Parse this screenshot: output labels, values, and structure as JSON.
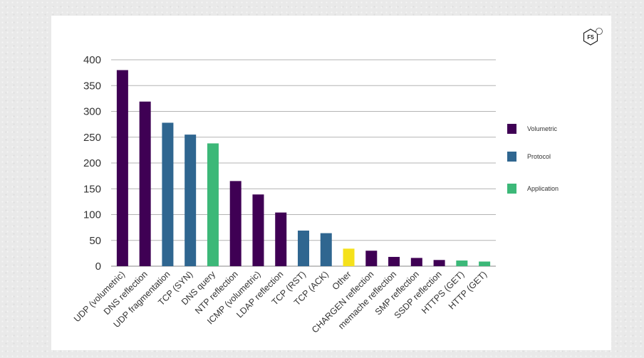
{
  "logo": {
    "text": "F5"
  },
  "chart_data": {
    "type": "bar",
    "title": "",
    "xlabel": "",
    "ylabel": "",
    "ylim": [
      0,
      400
    ],
    "yticks": [
      0,
      50,
      100,
      150,
      200,
      250,
      300,
      350,
      400
    ],
    "grid": true,
    "legend_position": "right",
    "categories": [
      "UDP (volumetric)",
      "DNS reflection",
      "UDP fragmentation",
      "TCP (SYN)",
      "DNS query",
      "NTP reflection",
      "ICMP (volumetric)",
      "LDAP reflection",
      "TCP (RST)",
      "TCP (ACK)",
      "Other",
      "CHARGEN reflection",
      "memache reflection",
      "SMP reflection",
      "SSDP reflection",
      "HTTPS (GET)",
      "HTTP (GET)"
    ],
    "values": [
      380,
      319,
      278,
      255,
      238,
      165,
      139,
      104,
      69,
      64,
      34,
      30,
      18,
      16,
      12,
      11,
      9
    ],
    "groups": [
      "Volumetric",
      "Volumetric",
      "Protocol",
      "Protocol",
      "Application",
      "Volumetric",
      "Volumetric",
      "Volumetric",
      "Protocol",
      "Protocol",
      "Other",
      "Volumetric",
      "Volumetric",
      "Volumetric",
      "Volumetric",
      "Application",
      "Application"
    ],
    "legend": [
      {
        "name": "Volumetric",
        "color": "#3f0054"
      },
      {
        "name": "Protocol",
        "color": "#2f6690"
      },
      {
        "name": "Application",
        "color": "#3cb878"
      }
    ],
    "colors": {
      "Volumetric": "#3f0054",
      "Protocol": "#2f6690",
      "Application": "#3cb878",
      "Other": "#f5e11b"
    }
  }
}
